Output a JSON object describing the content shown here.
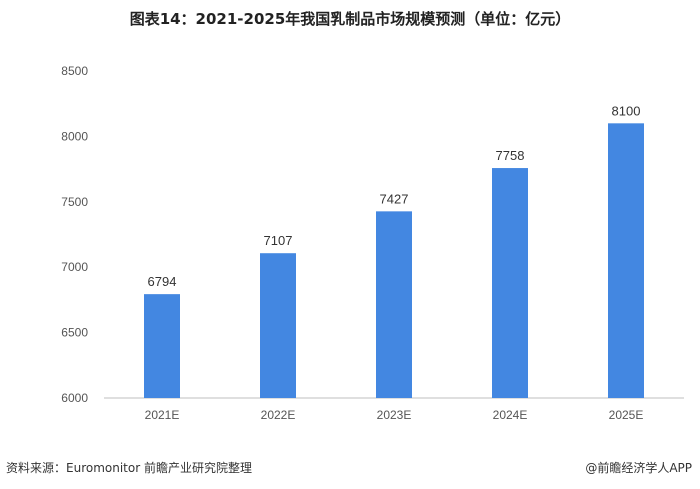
{
  "title": "图表14：2021-2025年我国乳制品市场规模预测（单位：亿元）",
  "source": "资料来源：Euromonitor 前瞻产业研究院整理",
  "brand": "@前瞻经济学人APP",
  "colors": {
    "bar": "#4387E1",
    "axis": "#BFBFBF"
  },
  "chart_data": {
    "type": "bar",
    "title": "图表14：2021-2025年我国乳制品市场规模预测（单位：亿元）",
    "categories": [
      "2021E",
      "2022E",
      "2023E",
      "2024E",
      "2025E"
    ],
    "series": [
      {
        "values": [
          6794,
          7107,
          7427,
          7758,
          8100
        ]
      }
    ],
    "ylim": [
      6000,
      8500
    ],
    "yticks": [
      6000,
      6500,
      7000,
      7500,
      8000,
      8500
    ],
    "grid": false,
    "legend": "none"
  }
}
